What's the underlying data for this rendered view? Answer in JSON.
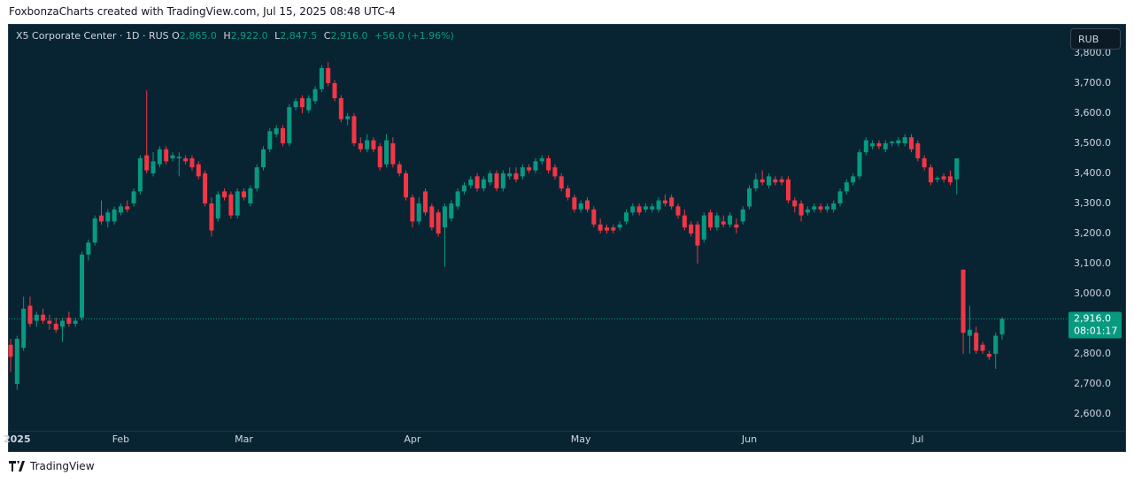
{
  "header": "FoxbonzaCharts created with TradingView.com, Jul 15, 2025 08:48 UTC-4",
  "footer": "TradingView",
  "legend": {
    "symbol": "X5 Corporate Center · 1D · RUS",
    "o": "O",
    "open": "2,865.0",
    "h": "H",
    "high": "2,922.0",
    "l": "L",
    "low": "2,847.5",
    "c": "C",
    "close": "2,916.0",
    "change": "+56.0 (+1.96%)"
  },
  "currency": "RUB",
  "chart_data": {
    "type": "candlestick",
    "up_color": "#089981",
    "down_color": "#f23645",
    "grid": false,
    "ylim": [
      2544,
      3894
    ],
    "yticks": [
      {
        "value": 2600,
        "label": "2,600.0"
      },
      {
        "value": 2700,
        "label": "2,700.0"
      },
      {
        "value": 2800,
        "label": "2,800.0"
      },
      {
        "value": 2900,
        "label": "2,900.0"
      },
      {
        "value": 3000,
        "label": "3,000.0"
      },
      {
        "value": 3100,
        "label": "3,100.0"
      },
      {
        "value": 3200,
        "label": "3,200.0"
      },
      {
        "value": 3300,
        "label": "3,300.0"
      },
      {
        "value": 3400,
        "label": "3,400.0"
      },
      {
        "value": 3500,
        "label": "3,500.0"
      },
      {
        "value": 3600,
        "label": "3,600.0"
      },
      {
        "value": 3700,
        "label": "3,700.0"
      },
      {
        "value": 3800,
        "label": "3,800.0"
      }
    ],
    "xticks": [
      {
        "value": 1,
        "label": "2025"
      },
      {
        "value": 17,
        "label": "Feb"
      },
      {
        "value": 36,
        "label": "Mar"
      },
      {
        "value": 62,
        "label": "Apr"
      },
      {
        "value": 88,
        "label": "May"
      },
      {
        "value": 114,
        "label": "Jun"
      },
      {
        "value": 140,
        "label": "Jul"
      }
    ],
    "last_price": {
      "value": 2916,
      "label": "2,916.0",
      "countdown": "08:01:17"
    },
    "open": [
      2830,
      2700,
      2820,
      2960,
      2910,
      2930,
      2910,
      2900,
      2890,
      2920,
      2900,
      2920,
      3130,
      3170,
      3260,
      3240,
      3240,
      3270,
      3290,
      3300,
      3340,
      3460,
      3400,
      3430,
      3480,
      3450,
      3450,
      3450,
      3450,
      3430,
      3400,
      3300,
      3250,
      3340,
      3330,
      3260,
      3340,
      3300,
      3350,
      3420,
      3480,
      3530,
      3550,
      3500,
      3620,
      3650,
      3610,
      3640,
      3680,
      3750,
      3700,
      3650,
      3580,
      3590,
      3500,
      3480,
      3510,
      3490,
      3430,
      3500,
      3430,
      3400,
      3320,
      3240,
      3340,
      3290,
      3270,
      3220,
      3250,
      3290,
      3340,
      3360,
      3390,
      3350,
      3370,
      3400,
      3350,
      3390,
      3400,
      3390,
      3420,
      3410,
      3440,
      3450,
      3420,
      3390,
      3350,
      3320,
      3280,
      3310,
      3280,
      3230,
      3220,
      3220,
      3220,
      3240,
      3270,
      3290,
      3280,
      3280,
      3280,
      3310,
      3320,
      3290,
      3260,
      3230,
      3230,
      3180,
      3270,
      3220,
      3240,
      3230,
      3230,
      3240,
      3290,
      3350,
      3380,
      3360,
      3380,
      3380,
      3380,
      3310,
      3300,
      3270,
      3280,
      3290,
      3280,
      3280,
      3300,
      3340,
      3370,
      3390,
      3470,
      3490,
      3500,
      3480,
      3500,
      3500,
      3500,
      3520,
      3500,
      3450,
      3420,
      3380,
      3390,
      3390,
      3380,
      3080,
      2860,
      2870,
      2830,
      2800,
      2800,
      2865
    ],
    "high": [
      2850,
      2860,
      2990,
      2990,
      2940,
      2950,
      2930,
      2920,
      2920,
      2940,
      2920,
      3140,
      3180,
      3260,
      3310,
      3280,
      3290,
      3300,
      3310,
      3350,
      3460,
      3676,
      3470,
      3490,
      3490,
      3470,
      3470,
      3460,
      3460,
      3440,
      3410,
      3320,
      3340,
      3350,
      3340,
      3350,
      3350,
      3360,
      3430,
      3490,
      3550,
      3560,
      3560,
      3630,
      3650,
      3660,
      3660,
      3690,
      3760,
      3770,
      3710,
      3660,
      3600,
      3600,
      3520,
      3530,
      3520,
      3500,
      3530,
      3520,
      3440,
      3410,
      3330,
      3320,
      3350,
      3300,
      3280,
      3300,
      3310,
      3350,
      3370,
      3390,
      3400,
      3390,
      3410,
      3410,
      3410,
      3420,
      3420,
      3430,
      3430,
      3450,
      3460,
      3460,
      3430,
      3400,
      3360,
      3330,
      3310,
      3320,
      3290,
      3250,
      3230,
      3230,
      3240,
      3280,
      3300,
      3300,
      3300,
      3300,
      3320,
      3330,
      3330,
      3300,
      3280,
      3240,
      3240,
      3270,
      3280,
      3270,
      3260,
      3270,
      3250,
      3290,
      3360,
      3400,
      3410,
      3400,
      3390,
      3390,
      3390,
      3320,
      3310,
      3290,
      3300,
      3300,
      3300,
      3310,
      3350,
      3380,
      3400,
      3480,
      3520,
      3510,
      3510,
      3510,
      3510,
      3520,
      3530,
      3530,
      3510,
      3460,
      3430,
      3390,
      3400,
      3410,
      3450,
      3080,
      2960,
      2890,
      2840,
      2810,
      2870,
      2922
    ],
    "low": [
      2740,
      2680,
      2810,
      2890,
      2890,
      2900,
      2880,
      2870,
      2840,
      2890,
      2890,
      2910,
      3110,
      3160,
      3230,
      3220,
      3230,
      3260,
      3270,
      3290,
      3330,
      3400,
      3390,
      3420,
      3430,
      3440,
      3390,
      3430,
      3410,
      3380,
      3290,
      3190,
      3240,
      3310,
      3250,
      3250,
      3310,
      3290,
      3340,
      3410,
      3470,
      3520,
      3490,
      3490,
      3610,
      3600,
      3600,
      3630,
      3670,
      3690,
      3640,
      3570,
      3560,
      3490,
      3470,
      3470,
      3470,
      3410,
      3420,
      3420,
      3390,
      3310,
      3220,
      3230,
      3260,
      3210,
      3190,
      3090,
      3240,
      3280,
      3330,
      3350,
      3340,
      3340,
      3360,
      3340,
      3340,
      3380,
      3370,
      3380,
      3400,
      3400,
      3430,
      3400,
      3380,
      3340,
      3310,
      3270,
      3270,
      3270,
      3220,
      3200,
      3200,
      3200,
      3210,
      3230,
      3260,
      3260,
      3270,
      3270,
      3270,
      3290,
      3280,
      3250,
      3210,
      3190,
      3100,
      3170,
      3210,
      3210,
      3220,
      3220,
      3200,
      3230,
      3280,
      3340,
      3360,
      3350,
      3360,
      3360,
      3300,
      3270,
      3240,
      3260,
      3270,
      3270,
      3270,
      3270,
      3290,
      3330,
      3360,
      3380,
      3460,
      3480,
      3480,
      3470,
      3490,
      3490,
      3490,
      3470,
      3440,
      3410,
      3360,
      3370,
      3370,
      3360,
      3330,
      2800,
      2800,
      2800,
      2800,
      2780,
      2750,
      2847.5
    ],
    "close": [
      2790,
      2850,
      2950,
      2900,
      2930,
      2910,
      2900,
      2880,
      2910,
      2900,
      2910,
      3130,
      3170,
      3250,
      3240,
      3270,
      3280,
      3290,
      3280,
      3340,
      3450,
      3410,
      3440,
      3480,
      3440,
      3460,
      3455,
      3440,
      3420,
      3390,
      3300,
      3210,
      3330,
      3320,
      3260,
      3340,
      3320,
      3350,
      3420,
      3480,
      3540,
      3550,
      3500,
      3620,
      3640,
      3620,
      3650,
      3680,
      3750,
      3700,
      3650,
      3580,
      3590,
      3500,
      3480,
      3510,
      3480,
      3420,
      3510,
      3430,
      3400,
      3320,
      3240,
      3300,
      3270,
      3220,
      3200,
      3290,
      3300,
      3340,
      3360,
      3380,
      3350,
      3380,
      3400,
      3350,
      3400,
      3400,
      3380,
      3420,
      3410,
      3440,
      3450,
      3410,
      3390,
      3350,
      3320,
      3280,
      3300,
      3280,
      3230,
      3210,
      3210,
      3210,
      3230,
      3270,
      3290,
      3270,
      3290,
      3290,
      3310,
      3300,
      3290,
      3260,
      3220,
      3200,
      3160,
      3260,
      3220,
      3260,
      3230,
      3260,
      3220,
      3280,
      3350,
      3380,
      3370,
      3390,
      3370,
      3370,
      3310,
      3290,
      3260,
      3280,
      3290,
      3280,
      3290,
      3300,
      3340,
      3370,
      3390,
      3470,
      3510,
      3500,
      3490,
      3500,
      3505,
      3510,
      3520,
      3480,
      3450,
      3420,
      3370,
      3385,
      3380,
      3370,
      3450,
      2870,
      2880,
      2810,
      2810,
      2790,
      2860,
      2916
    ]
  }
}
